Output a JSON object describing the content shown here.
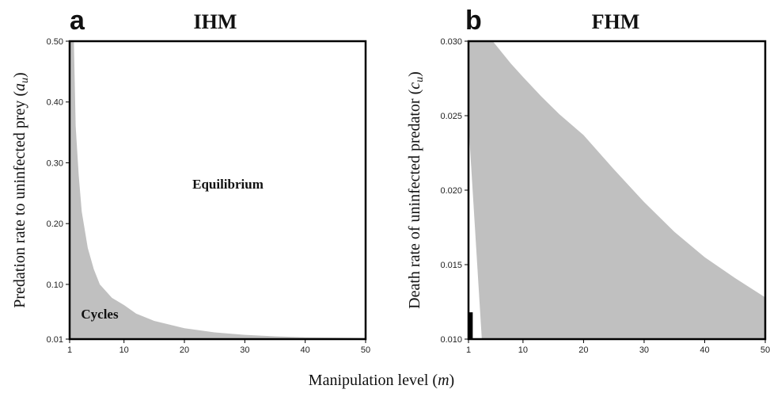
{
  "shared_xlabel": "Manipulation level",
  "shared_xlabel_var": "m",
  "chart_data": [
    {
      "type": "area",
      "panel": "a",
      "title": "IHM",
      "xlabel": "Manipulation level (m)",
      "ylabel": "Predation rate to uninfected prey",
      "ylabel_var": "a",
      "ylabel_sub": "u",
      "xlim": [
        1,
        50
      ],
      "ylim": [
        0.01,
        0.5
      ],
      "xticks": [
        1,
        10,
        20,
        30,
        40,
        50
      ],
      "yticks": [
        0.01,
        0.1,
        0.2,
        0.3,
        0.4,
        0.5
      ],
      "ytick_labels": [
        "0.01",
        "0.10",
        "0.20",
        "0.30",
        "0.40",
        "0.50"
      ],
      "regions": [
        {
          "name": "Cycles",
          "fill": "#c0c0c0",
          "at": [
            6,
            0.05
          ]
        },
        {
          "name": "Equilibrium",
          "fill": "#ffffff",
          "at": [
            22,
            0.27
          ]
        }
      ],
      "boundary": {
        "x": [
          1.7,
          2,
          2.5,
          3,
          4,
          5,
          6,
          8,
          10,
          12,
          15,
          20,
          25,
          30,
          35,
          40,
          45,
          50
        ],
        "y": [
          0.5,
          0.36,
          0.28,
          0.22,
          0.16,
          0.125,
          0.1,
          0.078,
          0.066,
          0.052,
          0.04,
          0.028,
          0.021,
          0.017,
          0.0145,
          0.013,
          0.0125,
          0.012
        ]
      },
      "shaded": "below"
    },
    {
      "type": "area",
      "panel": "b",
      "title": "FHM",
      "xlabel": "Manipulation level (m)",
      "ylabel": "Death rate of uninfected predator",
      "ylabel_var": "c",
      "ylabel_sub": "u",
      "xlim": [
        1,
        50
      ],
      "ylim": [
        0.01,
        0.03
      ],
      "xticks": [
        1,
        10,
        20,
        30,
        40,
        50
      ],
      "yticks": [
        0.01,
        0.015,
        0.02,
        0.025,
        0.03
      ],
      "ytick_labels": [
        "0.010",
        "0.015",
        "0.020",
        "0.025",
        "0.030"
      ],
      "band": {
        "fill": "#c0c0c0",
        "upper": {
          "x": [
            5,
            6,
            8,
            10,
            13,
            16,
            20,
            25,
            30,
            35,
            40,
            45,
            50
          ],
          "y": [
            0.03,
            0.0295,
            0.0285,
            0.0276,
            0.0263,
            0.0251,
            0.0237,
            0.0214,
            0.0192,
            0.0172,
            0.0155,
            0.0141,
            0.0128
          ]
        },
        "lower": {
          "x": [
            1,
            3.2
          ],
          "y": [
            0.0245,
            0.01
          ]
        }
      },
      "black_bar": {
        "x": [
          1,
          1.7
        ],
        "y": [
          0.01,
          0.0118
        ],
        "fill": "#000000"
      }
    }
  ]
}
